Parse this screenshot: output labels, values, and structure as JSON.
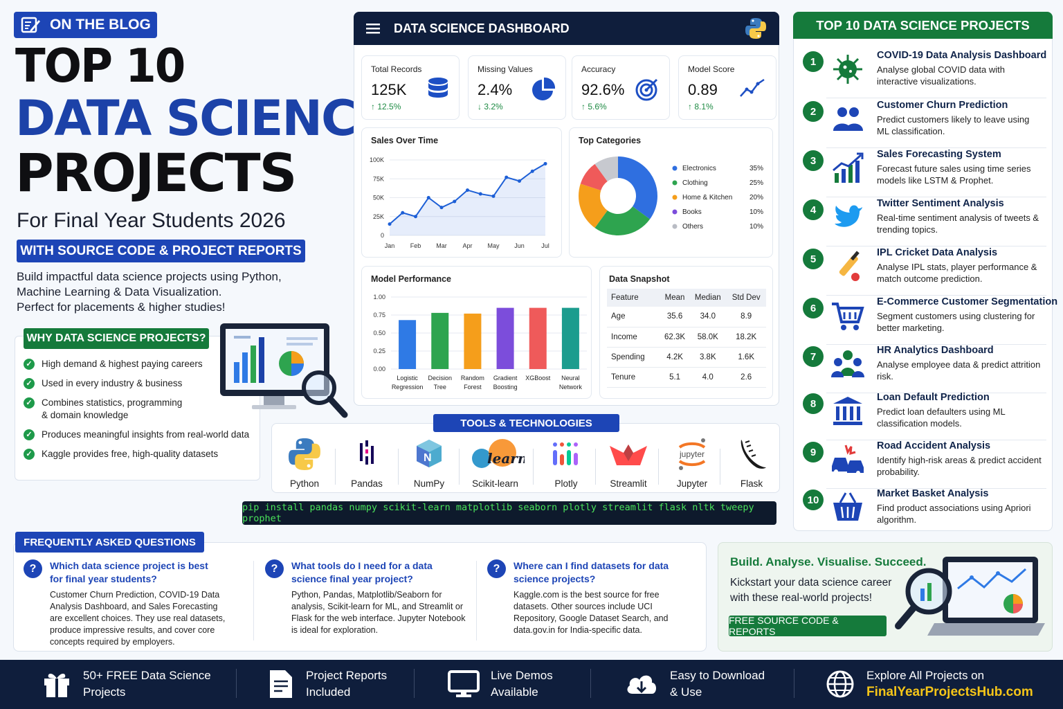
{
  "hero": {
    "badge": "ON THE BLOG",
    "line1": "TOP 10",
    "line2": "DATA SCIENCE",
    "line3": "PROJECTS",
    "subtitle": "For Final Year Students 2026",
    "band": "WITH SOURCE CODE & PROJECT REPORTS",
    "intro": [
      "Build impactful data science projects using Python,",
      "Machine Learning & Data Visualization.",
      "Perfect for placements & higher studies!"
    ]
  },
  "why": {
    "title": "WHY DATA SCIENCE PROJECTS?",
    "items": [
      "High demand & highest paying careers",
      "Used in every industry & business",
      "Combines statistics, programming & domain knowledge",
      "Produces meaningful insights from real-world data",
      "Kaggle provides free, high-quality datasets"
    ]
  },
  "dashboard": {
    "title": "DATA SCIENCE DASHBOARD",
    "kpis": [
      {
        "label": "Total Records",
        "value": "125K",
        "change": "↑ 12.5%",
        "icon": "database-icon"
      },
      {
        "label": "Missing Values",
        "value": "2.4%",
        "change": "↓ 3.2%",
        "icon": "pie-icon"
      },
      {
        "label": "Accuracy",
        "value": "92.6%",
        "change": "↑ 5.6%",
        "icon": "target-icon"
      },
      {
        "label": "Model Score",
        "value": "0.89",
        "change": "↑ 8.1%",
        "icon": "trend-icon"
      }
    ],
    "sales_title": "Sales Over Time",
    "categories_title": "Top Categories",
    "performance_title": "Model Performance",
    "snapshot": {
      "title": "Data Snapshot",
      "headers": [
        "Feature",
        "Mean",
        "Median",
        "Std Dev"
      ],
      "rows": [
        [
          "Age",
          "35.6",
          "34.0",
          "8.9"
        ],
        [
          "Income",
          "62.3K",
          "58.0K",
          "18.2K"
        ],
        [
          "Spending",
          "4.2K",
          "3.8K",
          "1.6K"
        ],
        [
          "Tenure",
          "5.1",
          "4.0",
          "2.6"
        ]
      ]
    }
  },
  "chart_data": [
    {
      "type": "line",
      "title": "Sales Over Time",
      "x": [
        "Jan",
        "Feb",
        "Mar",
        "Apr",
        "May",
        "Jun",
        "Jul"
      ],
      "x_ticks": [
        "Jan",
        "Feb",
        "Mar",
        "Apr",
        "May",
        "Jun",
        "Jul"
      ],
      "y_ticks": [
        "0",
        "25K",
        "50K",
        "75K",
        "100K"
      ],
      "ylim": [
        0,
        100000
      ],
      "points": [
        {
          "x": 0.0,
          "y": 15000
        },
        {
          "x": 0.5,
          "y": 30000
        },
        {
          "x": 1.0,
          "y": 25000
        },
        {
          "x": 1.5,
          "y": 50000
        },
        {
          "x": 2.0,
          "y": 37000
        },
        {
          "x": 2.5,
          "y": 45000
        },
        {
          "x": 3.0,
          "y": 60000
        },
        {
          "x": 3.5,
          "y": 55000
        },
        {
          "x": 4.0,
          "y": 52000
        },
        {
          "x": 4.5,
          "y": 77000
        },
        {
          "x": 5.0,
          "y": 72000
        },
        {
          "x": 5.5,
          "y": 85000
        },
        {
          "x": 6.0,
          "y": 95000
        }
      ],
      "color": "#1d5fd6",
      "grid": true
    },
    {
      "type": "pie",
      "title": "Top Categories",
      "donut": true,
      "legend": "right",
      "slices": [
        {
          "label": "Electronics",
          "value": 35,
          "display": "35%",
          "color": "#2f6fe0"
        },
        {
          "label": "Clothing",
          "value": 25,
          "display": "25%",
          "color": "#2ea44f"
        },
        {
          "label": "Home & Kitchen",
          "value": 20,
          "display": "20%",
          "color": "#f59e1b"
        },
        {
          "label": "Books",
          "value": 10,
          "display": "10%",
          "color": "#ef5a5a"
        },
        {
          "label": "Others",
          "value": 10,
          "display": "10%",
          "color": "#c7c9cf"
        }
      ],
      "legend_colors": [
        "#2f6fe0",
        "#2ea44f",
        "#f59e1b",
        "#7c4ddb",
        "#b9bcc4"
      ]
    },
    {
      "type": "bar",
      "title": "Model Performance",
      "categories": [
        [
          "Logistic",
          "Regression"
        ],
        [
          "Decision",
          "Tree"
        ],
        [
          "Random",
          "Forest"
        ],
        [
          "Gradient",
          "Boosting"
        ],
        [
          "XGBoost"
        ],
        [
          "Neural",
          "Network"
        ]
      ],
      "values": [
        0.68,
        0.78,
        0.77,
        0.85,
        0.85,
        0.85
      ],
      "colors": [
        "#2f7ae5",
        "#2ea44f",
        "#f59e1b",
        "#7c4ddb",
        "#ef5a5a",
        "#1c9c8e"
      ],
      "y_ticks": [
        "0.00",
        "0.25",
        "0.50",
        "0.75",
        "1.00"
      ],
      "ylim": [
        0,
        1
      ]
    }
  ],
  "top10": {
    "title": "TOP 10 DATA SCIENCE PROJECTS",
    "items": [
      {
        "n": "1",
        "title": "COVID-19 Data Analysis Dashboard",
        "desc": "Analyse global COVID data with interactive visualizations.",
        "icon": "virus-icon"
      },
      {
        "n": "2",
        "title": "Customer Churn Prediction",
        "desc": "Predict customers likely to leave using ML classification.",
        "icon": "users-icon"
      },
      {
        "n": "3",
        "title": "Sales Forecasting System",
        "desc": "Forecast future sales using time series models like LSTM & Prophet.",
        "icon": "growth-chart-icon"
      },
      {
        "n": "4",
        "title": "Twitter Sentiment Analysis",
        "desc": "Real-time sentiment analysis of tweets & trending topics.",
        "icon": "bird-icon"
      },
      {
        "n": "5",
        "title": "IPL Cricket Data Analysis",
        "desc": "Analyse IPL stats, player performance & match outcome prediction.",
        "icon": "cricket-bat-icon"
      },
      {
        "n": "6",
        "title": "E-Commerce Customer Segmentation",
        "desc": "Segment customers using clustering for better marketing.",
        "icon": "cart-icon"
      },
      {
        "n": "7",
        "title": "HR Analytics Dashboard",
        "desc": "Analyse employee data & predict attrition risk.",
        "icon": "team-icon"
      },
      {
        "n": "8",
        "title": "Loan Default Prediction",
        "desc": "Predict loan defaulters using ML classification models.",
        "icon": "bank-icon"
      },
      {
        "n": "9",
        "title": "Road Accident Analysis",
        "desc": "Identify high-risk areas & predict accident probability.",
        "icon": "car-crash-icon"
      },
      {
        "n": "10",
        "title": "Market Basket Analysis",
        "desc": "Find product associations using Apriori algorithm.",
        "icon": "basket-icon"
      }
    ]
  },
  "tools": {
    "title": "TOOLS & TECHNOLOGIES",
    "items": [
      "Python",
      "Pandas",
      "NumPy",
      "Scikit-learn",
      "Plotly",
      "Streamlit",
      "Jupyter",
      "Flask"
    ],
    "sklearn_logo": "learn",
    "jupyter_logo": "jupyter",
    "command": "pip install pandas numpy scikit-learn matplotlib seaborn plotly streamlit flask nltk tweepy prophet"
  },
  "faq": {
    "title": "FREQUENTLY ASKED QUESTIONS",
    "items": [
      {
        "q": "Which data science project is best for final year students?",
        "a": "Customer Churn Prediction, COVID-19 Data Analysis Dashboard, and Sales Forecasting are excellent choices. They use real datasets, produce impressive results, and cover core concepts required by employers."
      },
      {
        "q": "What tools do I need for a data science final year project?",
        "a": "Python, Pandas, Matplotlib/Seaborn for analysis, Scikit-learn for ML, and Streamlit or Flask for the web interface. Jupyter Notebook is ideal for exploration."
      },
      {
        "q": "Where can I find datasets for data science projects?",
        "a": "Kaggle.com is the best source for free datasets. Other sources include UCI Repository, Google Dataset Search, and data.gov.in for India-specific data."
      }
    ]
  },
  "cta": {
    "title": "Build. Analyse. Visualise. Succeed.",
    "desc": "Kickstart your data science career with these real-world projects!",
    "button": "FREE SOURCE CODE & REPORTS"
  },
  "footer": {
    "items": [
      {
        "l1": "50+ FREE Data Science",
        "l2": "Projects",
        "icon": "gift-icon"
      },
      {
        "l1": "Project Reports",
        "l2": "Included",
        "icon": "document-icon"
      },
      {
        "l1": "Live Demos",
        "l2": "Available",
        "icon": "monitor-icon"
      },
      {
        "l1": "Easy to Download",
        "l2": "& Use",
        "icon": "cloud-download-icon"
      }
    ],
    "explore": "Explore All Projects on",
    "site": "FinalYearProjectsHub.com"
  },
  "colors": {
    "blue": "#1d45b6",
    "green": "#157a3b",
    "navy": "#0f1e3c",
    "accent_yellow": "#f5c518",
    "terminal_green": "#4ae35a"
  }
}
